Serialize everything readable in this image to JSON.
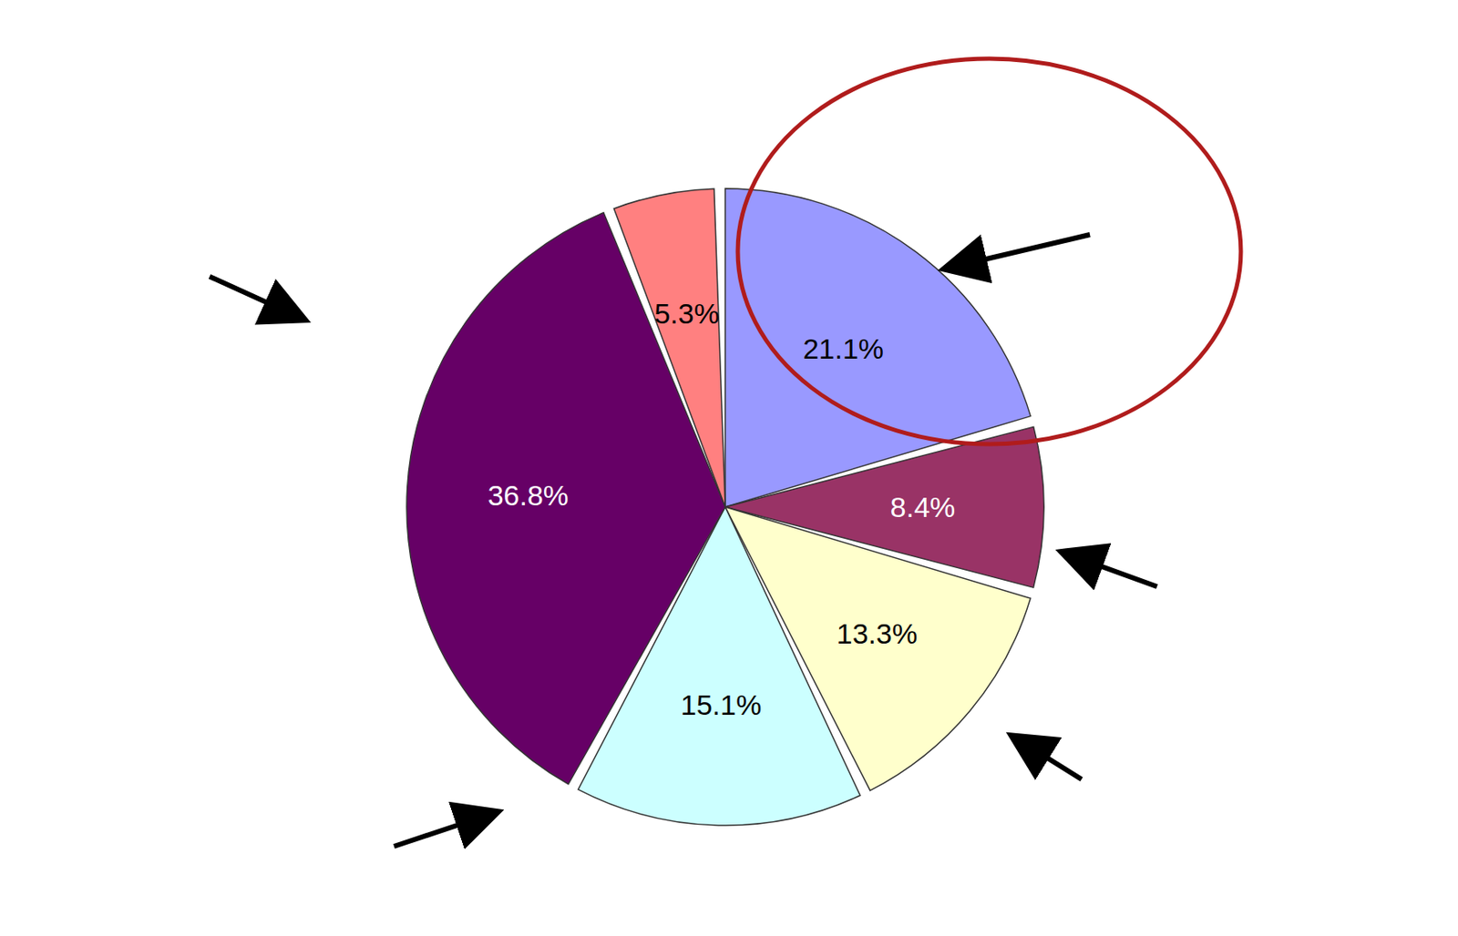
{
  "chart_data": {
    "type": "pie",
    "values": [
      21.1,
      8.4,
      13.3,
      15.1,
      36.8,
      5.3
    ],
    "value_labels": [
      "21.1%",
      "8.4%",
      "13.3%",
      "15.1%",
      "36.8%",
      "5.3%"
    ],
    "colors": [
      "#9999ff",
      "#993366",
      "#ffffcc",
      "#ccffff",
      "#660066",
      "#ff8080"
    ],
    "data_labels": true
  }
}
